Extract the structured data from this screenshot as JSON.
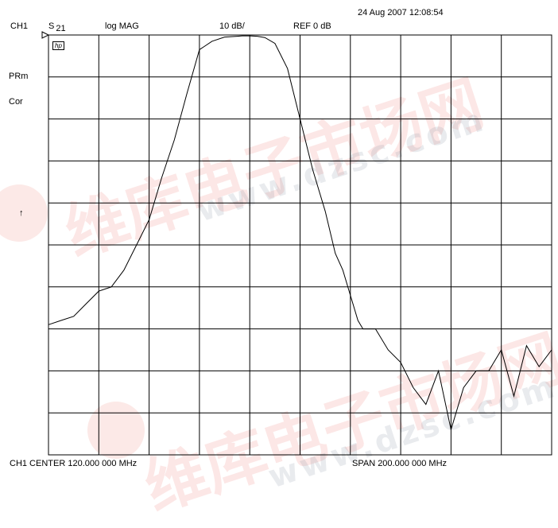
{
  "header": {
    "channel": "CH1",
    "param_main": "S",
    "param_sub": "21",
    "format": "log MAG",
    "scale": "10 dB/",
    "reference": "REF 0 dB",
    "timestamp": "24 Aug 2007  12:08:54"
  },
  "side_annotations": {
    "prm": "PRm",
    "cor": "Cor",
    "hp_logo": "hp",
    "arrow": "↑"
  },
  "footer": {
    "center": "CH1 CENTER  120.000 000 MHz",
    "span": "SPAN  200.000 000 MHz"
  },
  "watermark": {
    "chinese": "维库电子市场网",
    "url": "www.dzsc.com"
  },
  "colors": {
    "trace": "#000000",
    "grid": "#000000",
    "background": "#ffffff",
    "watermark_red": "#e6463c"
  },
  "chart_data": {
    "type": "line",
    "x_unit": "MHz",
    "y_unit": "dB",
    "xlim": [
      20,
      220
    ],
    "ylim": [
      -100,
      0
    ],
    "grid": true,
    "grid_divisions": {
      "x": 10,
      "y": 10
    },
    "series": [
      {
        "x": [
          20,
          25,
          30,
          35,
          40,
          45,
          50,
          55,
          60,
          65,
          70,
          75,
          80,
          85,
          90,
          95,
          97,
          100,
          103,
          106,
          110,
          115,
          120,
          125,
          130,
          134,
          137,
          140,
          143,
          145,
          150,
          155,
          160,
          165,
          170,
          175,
          180,
          185,
          190,
          195,
          200,
          205,
          210,
          215,
          220
        ],
        "y": [
          -69,
          -68,
          -67,
          -64,
          -61,
          -60,
          -56,
          -50,
          -44,
          -34,
          -25,
          -14,
          -3.5,
          -1.5,
          -0.5,
          -0.3,
          -0.2,
          -0.2,
          -0.3,
          -0.6,
          -2,
          -8,
          -20,
          -32,
          -42,
          -52,
          -56,
          -62,
          -68,
          -70,
          -70,
          -75,
          -78,
          -84,
          -88,
          -80,
          -94,
          -84,
          -80,
          -80,
          -75,
          -86,
          -74,
          -79,
          -75
        ]
      }
    ]
  }
}
